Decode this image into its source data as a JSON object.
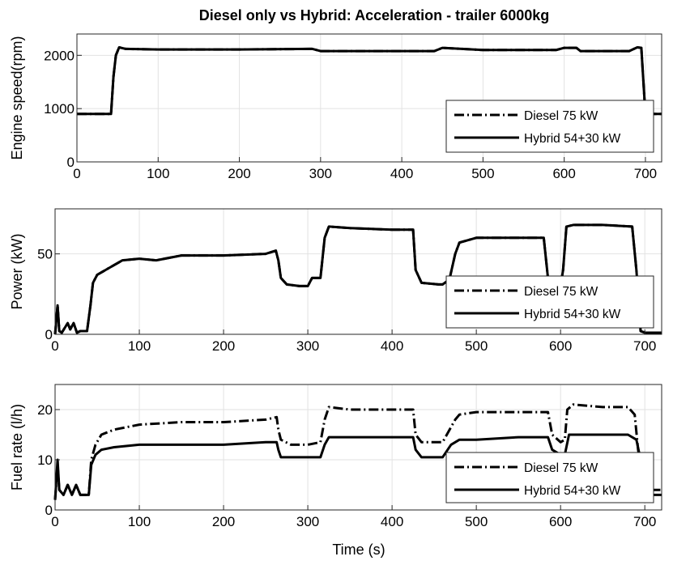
{
  "figure": {
    "title": "Diesel only vs Hybrid: Acceleration - trailer 6000kg",
    "xlabel": "Time (s)"
  },
  "chart_data": [
    {
      "type": "line",
      "ylabel": "Engine speed(rpm)",
      "xlim": [
        0,
        720
      ],
      "ylim": [
        0,
        2400
      ],
      "xticks": [
        0,
        100,
        200,
        300,
        400,
        500,
        600,
        700
      ],
      "yticks": [
        0,
        1000,
        2000
      ],
      "grid": true,
      "legend_position": "bottom-right",
      "series": [
        {
          "name": "Diesel 75 kW",
          "style": "dash-dot",
          "x": [
            0,
            42,
            45,
            48,
            52,
            60,
            100,
            200,
            290,
            300,
            340,
            400,
            440,
            450,
            500,
            590,
            600,
            615,
            620,
            680,
            690,
            695,
            700,
            720
          ],
          "y": [
            900,
            900,
            1600,
            2000,
            2150,
            2120,
            2110,
            2110,
            2120,
            2080,
            2080,
            2080,
            2080,
            2140,
            2100,
            2100,
            2140,
            2140,
            2080,
            2080,
            2150,
            2140,
            900,
            900
          ]
        },
        {
          "name": "Hybrid 54+30 kW",
          "style": "solid",
          "x": [
            0,
            42,
            45,
            48,
            52,
            60,
            100,
            200,
            290,
            300,
            340,
            400,
            440,
            450,
            500,
            590,
            600,
            615,
            620,
            680,
            690,
            695,
            700,
            720
          ],
          "y": [
            900,
            900,
            1600,
            2000,
            2150,
            2120,
            2110,
            2110,
            2120,
            2080,
            2080,
            2080,
            2080,
            2140,
            2100,
            2100,
            2140,
            2140,
            2080,
            2080,
            2150,
            2140,
            900,
            900
          ]
        }
      ]
    },
    {
      "type": "line",
      "ylabel": "Power (kW)",
      "xlim": [
        0,
        720
      ],
      "ylim": [
        0,
        78
      ],
      "xticks": [
        0,
        100,
        200,
        300,
        400,
        500,
        600,
        700
      ],
      "yticks": [
        0,
        50
      ],
      "grid": true,
      "legend_position": "bottom-right",
      "series": [
        {
          "name": "Diesel 75 kW",
          "style": "dash-dot",
          "x": [
            0,
            3,
            5,
            8,
            15,
            18,
            22,
            26,
            30,
            38,
            42,
            45,
            50,
            60,
            80,
            100,
            120,
            150,
            200,
            250,
            262,
            265,
            268,
            275,
            290,
            300,
            305,
            315,
            320,
            325,
            350,
            400,
            425,
            428,
            435,
            455,
            460,
            468,
            475,
            480,
            500,
            550,
            580,
            585,
            590,
            600,
            603,
            607,
            615,
            650,
            685,
            690,
            695,
            700,
            720
          ],
          "y": [
            0,
            18,
            2,
            1,
            7,
            3,
            7,
            1,
            2,
            2,
            18,
            32,
            37,
            40,
            46,
            47,
            46,
            49,
            49,
            50,
            52,
            46,
            35,
            31,
            30,
            30,
            35,
            35,
            60,
            67,
            66,
            65,
            65,
            40,
            32,
            31,
            31,
            34,
            50,
            57,
            60,
            60,
            60,
            35,
            30,
            30,
            40,
            67,
            68,
            68,
            67,
            40,
            2,
            1,
            1
          ]
        },
        {
          "name": "Hybrid 54+30 kW",
          "style": "solid",
          "x": [
            0,
            3,
            5,
            8,
            15,
            18,
            22,
            26,
            30,
            38,
            42,
            45,
            50,
            60,
            80,
            100,
            120,
            150,
            200,
            250,
            262,
            265,
            268,
            275,
            290,
            300,
            305,
            315,
            320,
            325,
            350,
            400,
            425,
            428,
            435,
            455,
            460,
            468,
            475,
            480,
            500,
            550,
            580,
            585,
            590,
            600,
            603,
            607,
            615,
            650,
            685,
            690,
            695,
            700,
            720
          ],
          "y": [
            0,
            18,
            2,
            1,
            7,
            3,
            7,
            1,
            2,
            2,
            18,
            32,
            37,
            40,
            46,
            47,
            46,
            49,
            49,
            50,
            52,
            46,
            35,
            31,
            30,
            30,
            35,
            35,
            60,
            67,
            66,
            65,
            65,
            40,
            32,
            31,
            31,
            34,
            50,
            57,
            60,
            60,
            60,
            35,
            30,
            30,
            40,
            67,
            68,
            68,
            67,
            40,
            2,
            1,
            1
          ]
        }
      ]
    },
    {
      "type": "line",
      "ylabel": "Fuel rate (l/h)",
      "xlim": [
        0,
        720
      ],
      "ylim": [
        0,
        25
      ],
      "xticks": [
        0,
        100,
        200,
        300,
        400,
        500,
        600,
        700
      ],
      "yticks": [
        0,
        10,
        20
      ],
      "grid": true,
      "legend_position": "bottom-right",
      "series": [
        {
          "name": "Diesel 75 kW",
          "style": "dash-dot",
          "x": [
            0,
            3,
            5,
            10,
            15,
            20,
            25,
            30,
            40,
            43,
            48,
            55,
            70,
            100,
            150,
            200,
            250,
            263,
            265,
            268,
            280,
            300,
            315,
            320,
            325,
            350,
            400,
            425,
            428,
            435,
            460,
            465,
            475,
            480,
            500,
            550,
            585,
            590,
            600,
            605,
            608,
            615,
            650,
            680,
            688,
            692,
            700,
            720
          ],
          "y": [
            2,
            9,
            4,
            3,
            5,
            3,
            5,
            3,
            3,
            10,
            13,
            15,
            16,
            17,
            17.5,
            17.5,
            18,
            18.5,
            16,
            14,
            13,
            13,
            13.5,
            18,
            20.5,
            20,
            20,
            20,
            15,
            13.5,
            13.5,
            15,
            18,
            19,
            19.5,
            19.5,
            19.5,
            15,
            13.5,
            14,
            20,
            21,
            20.5,
            20.5,
            19,
            12,
            4,
            4
          ]
        },
        {
          "name": "Hybrid 54+30 kW",
          "style": "solid",
          "x": [
            0,
            3,
            5,
            10,
            15,
            20,
            25,
            30,
            40,
            43,
            48,
            55,
            70,
            100,
            150,
            200,
            250,
            263,
            265,
            268,
            280,
            300,
            315,
            320,
            325,
            350,
            400,
            425,
            428,
            435,
            450,
            460,
            470,
            480,
            500,
            550,
            585,
            590,
            600,
            605,
            610,
            650,
            680,
            690,
            695,
            700,
            720
          ],
          "y": [
            2,
            10,
            4,
            3,
            5,
            3,
            5,
            3,
            3,
            9,
            11,
            12,
            12.5,
            13,
            13,
            13,
            13.5,
            13.5,
            12,
            10.5,
            10.5,
            10.5,
            10.5,
            13,
            14.5,
            14.5,
            14.5,
            14.5,
            12,
            10.5,
            10.5,
            10.5,
            13,
            14,
            14,
            14.5,
            14.5,
            12,
            11,
            11,
            15,
            15,
            15,
            14,
            10,
            3,
            3
          ]
        }
      ]
    }
  ]
}
